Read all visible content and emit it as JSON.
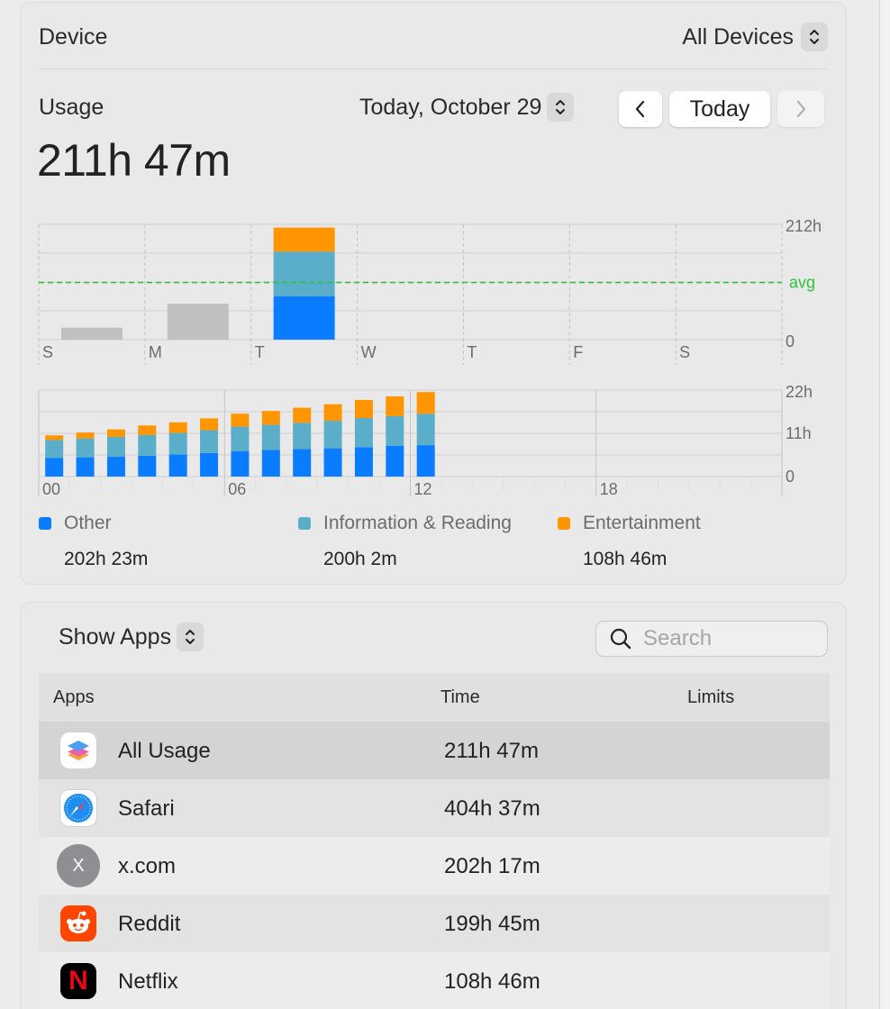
{
  "device": {
    "label": "Device",
    "selected": "All Devices"
  },
  "usage": {
    "label": "Usage",
    "total": "211h 47m",
    "date": "Today, October 29",
    "today_button": "Today"
  },
  "chart_data": [
    {
      "type": "bar",
      "stacked": true,
      "categories": [
        "S",
        "M",
        "T",
        "W",
        "T",
        "F",
        "S"
      ],
      "series": [
        {
          "name": "Other",
          "color": "#0a7cff",
          "values": [
            null,
            null,
            80,
            0,
            0,
            0,
            0
          ]
        },
        {
          "name": "Information & Reading",
          "color": "#5aaec9",
          "values": [
            null,
            null,
            82,
            0,
            0,
            0,
            0
          ]
        },
        {
          "name": "Entertainment",
          "color": "#ff9500",
          "values": [
            null,
            null,
            44,
            0,
            0,
            0,
            0
          ]
        },
        {
          "name": "",
          "color": "#c0c0c0",
          "values": [
            22,
            66,
            null,
            0,
            0,
            0,
            0
          ]
        }
      ],
      "y_ticks": [
        "212h",
        "0"
      ],
      "ylim": [
        0,
        212
      ],
      "average_line": {
        "label": "avg",
        "value": 105,
        "color": "#2ec43a"
      }
    },
    {
      "type": "bar",
      "stacked": true,
      "x_ticks": [
        "00",
        "06",
        "12",
        "18"
      ],
      "hours": [
        0,
        1,
        2,
        3,
        4,
        5,
        6,
        7,
        8,
        9,
        10,
        11,
        12
      ],
      "series": [
        {
          "name": "Other",
          "color": "#0a7cff",
          "values": [
            4.7,
            4.9,
            5.1,
            5.3,
            5.6,
            6.0,
            6.5,
            6.8,
            7.0,
            7.2,
            7.5,
            7.8,
            8.0
          ]
        },
        {
          "name": "Information & Reading",
          "color": "#5aaec9",
          "values": [
            4.6,
            4.8,
            5.0,
            5.3,
            5.5,
            5.8,
            6.2,
            6.4,
            6.7,
            7.0,
            7.4,
            7.6,
            8.0
          ]
        },
        {
          "name": "Entertainment",
          "color": "#ff9500",
          "values": [
            1.2,
            1.5,
            1.9,
            2.4,
            2.7,
            3.0,
            3.3,
            3.5,
            3.8,
            4.2,
            4.6,
            5.0,
            5.5
          ]
        }
      ],
      "y_ticks": [
        "22h",
        "11h",
        "0"
      ],
      "ylim": [
        0,
        22
      ]
    }
  ],
  "legend": [
    {
      "name": "Other",
      "color": "#0a7cff",
      "value": "202h 23m"
    },
    {
      "name": "Information & Reading",
      "color": "#5aaec9",
      "value": "200h 2m"
    },
    {
      "name": "Entertainment",
      "color": "#ff9500",
      "value": "108h 46m"
    }
  ],
  "apps_panel": {
    "filter": "Show Apps",
    "search_placeholder": "Search",
    "columns": {
      "apps": "Apps",
      "time": "Time",
      "limits": "Limits"
    },
    "rows": [
      {
        "name": "All Usage",
        "time": "211h 47m",
        "icon": "layers-icon"
      },
      {
        "name": "Safari",
        "time": "404h 37m",
        "icon": "safari-icon"
      },
      {
        "name": "x.com",
        "time": "202h 17m",
        "icon": "x-com-icon",
        "icon_letter": "X"
      },
      {
        "name": "Reddit",
        "time": "199h 45m",
        "icon": "reddit-icon"
      },
      {
        "name": "Netflix",
        "time": "108h 46m",
        "icon": "netflix-icon",
        "icon_letter": "N"
      }
    ]
  }
}
